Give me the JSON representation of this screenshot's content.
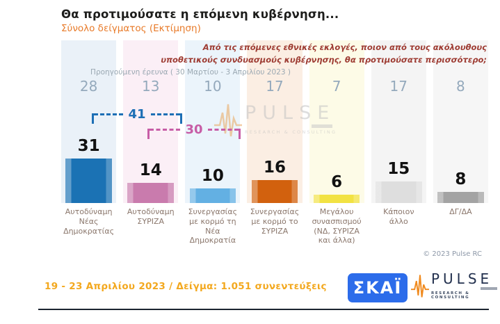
{
  "header": {
    "title": "Θα προτιμούσατε η επόμενη κυβέρνηση...",
    "subtitle": "Σύνολο δείγματος  (Εκτίμηση)"
  },
  "question": "Από τις επόμενες εθνικές εκλογές, ποιον από τους ακόλουθους υποθετικούς συνδυασμούς κυβέρνησης, θα προτιμούσατε περισσότερο;",
  "previous_survey_label": "Προηγούμενη έρευνα ( 30 Μαρτίου - 3 Απριλίου  2023 )",
  "chart_data": {
    "type": "bar",
    "title": "Θα προτιμούσατε η επόμενη κυβέρνηση...",
    "subtitle": "Σύνολο δείγματος (Εκτίμηση)",
    "categories": [
      "Αυτοδύναμη Νέας Δημοκρατίας",
      "Αυτοδύναμη ΣΥΡΙΖΑ",
      "Συνεργασίας με κορμό τη Νέα Δημοκρατία",
      "Συνεργασίας με κορμό το ΣΥΡΙΖΑ",
      "Μεγάλου συνασπισμού (ΝΔ, ΣΥΡΙΖΑ και άλλα)",
      "Κάποιον άλλο",
      "ΔΓ/ΔΑ"
    ],
    "series": [
      {
        "name": "Προηγούμενη έρευνα (30 Μαρτίου - 3 Απριλίου 2023)",
        "values": [
          28,
          13,
          10,
          17,
          7,
          17,
          8
        ]
      },
      {
        "name": "Εκτίμηση (19 - 23 Απριλίου 2023)",
        "values": [
          31,
          14,
          10,
          16,
          6,
          15,
          8
        ]
      }
    ],
    "annotations": [
      {
        "value": "41",
        "from_category": 0,
        "to_category": 2,
        "color": "#1d6fb5"
      },
      {
        "value": "30",
        "from_category": 1,
        "to_category": 3,
        "color": "#c75da6"
      }
    ],
    "bar_colors": [
      "#1b72b4",
      "#c97bad",
      "#63b0e3",
      "#d2610e",
      "#f2e243",
      "#dedede",
      "#a3a3a3"
    ],
    "ylim": [
      0,
      45
    ],
    "grid": false,
    "legend_position": "none"
  },
  "columns": [
    {
      "prev": "28",
      "value": "31",
      "label": "Αυτοδύναμη\nΝέας\nΔημοκρατίας",
      "color": "#1b72b4",
      "tint": "#eaf1f8"
    },
    {
      "prev": "13",
      "value": "14",
      "label": "Αυτοδύναμη\nΣΥΡΙΖΑ",
      "color": "#c97bad",
      "tint": "#fbeff6"
    },
    {
      "prev": "10",
      "value": "10",
      "label": "Συνεργασίας\nμε κορμό τη\nΝέα Δημοκρατία",
      "color": "#63b0e3",
      "tint": "#ebf4fb"
    },
    {
      "prev": "17",
      "value": "16",
      "label": "Συνεργασίας\nμε κορμό το\nΣΥΡΙΖΑ",
      "color": "#d2610e",
      "tint": "#fbeee3"
    },
    {
      "prev": "7",
      "value": "6",
      "label": "Μεγάλου\nσυνασπισμού\n(ΝΔ, ΣΥΡΙΖΑ\nκαι άλλα)",
      "color": "#f2e243",
      "tint": "#fdfbe7"
    },
    {
      "prev": "17",
      "value": "15",
      "label": "Κάποιον\nάλλο",
      "color": "#dedede",
      "tint": "#f4f4f4"
    },
    {
      "prev": "8",
      "value": "8",
      "label": "ΔΓ/ΔΑ",
      "color": "#a3a3a3",
      "tint": "#f6f6f6"
    }
  ],
  "watermark": {
    "wordmark": "PULSE",
    "caption": "RESEARCH & CONSULTING"
  },
  "footer": {
    "copyright": "© 2023 Pulse RC",
    "fieldwork": "19 - 23  Απριλίου  2023  /  Δείγμα:  1.051 συνεντεύξεις",
    "skai_logo_text": "ΣΚΑΪ",
    "pulse_logo": {
      "wordmark": "PULSE",
      "caption": "RESEARCH & CONSULTING"
    }
  },
  "colors": {
    "accent_orange": "#e87a28",
    "question_red": "#9e3c33",
    "prev_value_gray": "#94a9bc",
    "fieldwork_gold": "#f3a81e",
    "skai_blue": "#2c6cea",
    "pulse_navy": "#22304e",
    "pulse_wave_orange": "#f08a1e"
  }
}
